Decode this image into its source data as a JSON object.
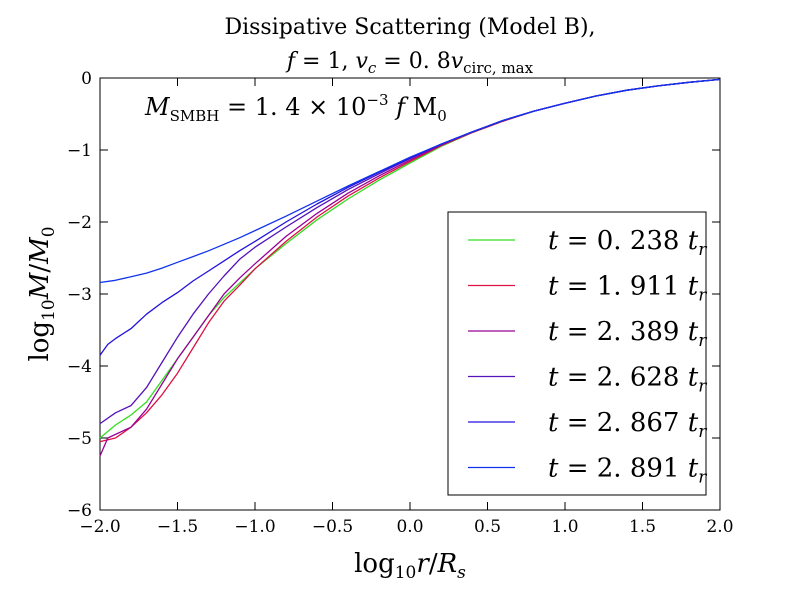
{
  "chart_data": {
    "type": "line",
    "title_line1": "Dissipative Scattering (Model B),",
    "title_line2": "f = 1, v_c = 0.8 v_circ,max",
    "annotation": "M_SMBH = 1.4×10^−3 f M_0",
    "xlabel": "log10 r/Rs",
    "ylabel": "log10 M/M0",
    "xlim": [
      -2.0,
      2.0
    ],
    "ylim": [
      -6,
      0
    ],
    "xticks": [
      -2.0,
      -1.5,
      -1.0,
      -0.5,
      0.0,
      0.5,
      1.0,
      1.5,
      2.0
    ],
    "xtick_labels": [
      "−2.0",
      "−1.5",
      "−1.0",
      "−0.5",
      "0.0",
      "0.5",
      "1.0",
      "1.5",
      "2.0"
    ],
    "yticks": [
      0,
      -1,
      -2,
      -3,
      -4,
      -5,
      -6
    ],
    "ytick_labels": [
      "0",
      "−1",
      "−2",
      "−3",
      "−4",
      "−5",
      "−6"
    ],
    "legend_position": "lower-right",
    "series": [
      {
        "name": "t = 0.238 t_r",
        "color": "#33dd22",
        "points": [
          [
            -2.0,
            -5.0
          ],
          [
            -1.9,
            -4.82
          ],
          [
            -1.8,
            -4.68
          ],
          [
            -1.7,
            -4.5
          ],
          [
            -1.6,
            -4.2
          ],
          [
            -1.5,
            -3.9
          ],
          [
            -1.4,
            -3.6
          ],
          [
            -1.3,
            -3.3
          ],
          [
            -1.2,
            -3.05
          ],
          [
            -1.1,
            -2.85
          ],
          [
            -1.0,
            -2.65
          ],
          [
            -0.8,
            -2.3
          ],
          [
            -0.6,
            -1.97
          ],
          [
            -0.4,
            -1.68
          ],
          [
            -0.2,
            -1.42
          ],
          [
            0.0,
            -1.18
          ],
          [
            0.2,
            -0.95
          ],
          [
            0.4,
            -0.76
          ],
          [
            0.6,
            -0.6
          ],
          [
            0.8,
            -0.46
          ],
          [
            1.0,
            -0.35
          ],
          [
            1.2,
            -0.25
          ],
          [
            1.4,
            -0.17
          ],
          [
            1.6,
            -0.11
          ],
          [
            1.8,
            -0.06
          ],
          [
            2.0,
            -0.02
          ]
        ]
      },
      {
        "name": "t = 1.911 t_r",
        "color": "#dd1144",
        "points": [
          [
            -2.0,
            -5.05
          ],
          [
            -1.9,
            -5.0
          ],
          [
            -1.8,
            -4.85
          ],
          [
            -1.7,
            -4.65
          ],
          [
            -1.6,
            -4.4
          ],
          [
            -1.5,
            -4.1
          ],
          [
            -1.4,
            -3.75
          ],
          [
            -1.3,
            -3.4
          ],
          [
            -1.2,
            -3.1
          ],
          [
            -1.1,
            -2.88
          ],
          [
            -1.0,
            -2.65
          ],
          [
            -0.8,
            -2.27
          ],
          [
            -0.6,
            -1.93
          ],
          [
            -0.4,
            -1.64
          ],
          [
            -0.2,
            -1.39
          ],
          [
            0.0,
            -1.16
          ],
          [
            0.2,
            -0.94
          ],
          [
            0.4,
            -0.76
          ],
          [
            0.6,
            -0.6
          ],
          [
            0.8,
            -0.46
          ],
          [
            1.0,
            -0.35
          ],
          [
            1.2,
            -0.25
          ],
          [
            1.4,
            -0.17
          ],
          [
            1.6,
            -0.11
          ],
          [
            1.8,
            -0.06
          ],
          [
            2.0,
            -0.02
          ]
        ]
      },
      {
        "name": "t = 2.389 t_r",
        "color": "#990099",
        "points": [
          [
            -2.0,
            -5.25
          ],
          [
            -1.95,
            -5.0
          ],
          [
            -1.9,
            -4.95
          ],
          [
            -1.8,
            -4.85
          ],
          [
            -1.7,
            -4.6
          ],
          [
            -1.6,
            -4.25
          ],
          [
            -1.5,
            -3.9
          ],
          [
            -1.4,
            -3.6
          ],
          [
            -1.3,
            -3.3
          ],
          [
            -1.2,
            -3.0
          ],
          [
            -1.1,
            -2.78
          ],
          [
            -1.0,
            -2.58
          ],
          [
            -0.8,
            -2.2
          ],
          [
            -0.6,
            -1.88
          ],
          [
            -0.4,
            -1.6
          ],
          [
            -0.2,
            -1.36
          ],
          [
            0.0,
            -1.14
          ],
          [
            0.2,
            -0.93
          ],
          [
            0.4,
            -0.75
          ],
          [
            0.6,
            -0.59
          ],
          [
            0.8,
            -0.46
          ],
          [
            1.0,
            -0.35
          ],
          [
            1.2,
            -0.25
          ],
          [
            1.4,
            -0.17
          ],
          [
            1.6,
            -0.11
          ],
          [
            1.8,
            -0.06
          ],
          [
            2.0,
            -0.02
          ]
        ]
      },
      {
        "name": "t = 2.628 t_r",
        "color": "#5511bb",
        "points": [
          [
            -2.0,
            -4.8
          ],
          [
            -1.9,
            -4.65
          ],
          [
            -1.8,
            -4.55
          ],
          [
            -1.7,
            -4.3
          ],
          [
            -1.6,
            -3.95
          ],
          [
            -1.5,
            -3.6
          ],
          [
            -1.4,
            -3.28
          ],
          [
            -1.3,
            -3.0
          ],
          [
            -1.2,
            -2.75
          ],
          [
            -1.1,
            -2.52
          ],
          [
            -1.0,
            -2.35
          ],
          [
            -0.8,
            -2.07
          ],
          [
            -0.6,
            -1.8
          ],
          [
            -0.4,
            -1.55
          ],
          [
            -0.2,
            -1.33
          ],
          [
            0.0,
            -1.12
          ],
          [
            0.2,
            -0.92
          ],
          [
            0.4,
            -0.75
          ],
          [
            0.6,
            -0.59
          ],
          [
            0.8,
            -0.46
          ],
          [
            1.0,
            -0.35
          ],
          [
            1.2,
            -0.25
          ],
          [
            1.4,
            -0.17
          ],
          [
            1.6,
            -0.11
          ],
          [
            1.8,
            -0.06
          ],
          [
            2.0,
            -0.02
          ]
        ]
      },
      {
        "name": "t = 2.867 t_r",
        "color": "#2211dd",
        "points": [
          [
            -2.0,
            -3.85
          ],
          [
            -1.95,
            -3.7
          ],
          [
            -1.9,
            -3.62
          ],
          [
            -1.8,
            -3.48
          ],
          [
            -1.7,
            -3.28
          ],
          [
            -1.6,
            -3.12
          ],
          [
            -1.5,
            -2.98
          ],
          [
            -1.4,
            -2.82
          ],
          [
            -1.3,
            -2.68
          ],
          [
            -1.2,
            -2.54
          ],
          [
            -1.1,
            -2.4
          ],
          [
            -1.0,
            -2.27
          ],
          [
            -0.8,
            -2.0
          ],
          [
            -0.6,
            -1.75
          ],
          [
            -0.4,
            -1.52
          ],
          [
            -0.2,
            -1.31
          ],
          [
            0.0,
            -1.11
          ],
          [
            0.2,
            -0.92
          ],
          [
            0.4,
            -0.75
          ],
          [
            0.6,
            -0.59
          ],
          [
            0.8,
            -0.46
          ],
          [
            1.0,
            -0.35
          ],
          [
            1.2,
            -0.25
          ],
          [
            1.4,
            -0.17
          ],
          [
            1.6,
            -0.11
          ],
          [
            1.8,
            -0.06
          ],
          [
            2.0,
            -0.02
          ]
        ]
      },
      {
        "name": "t = 2.891 t_r",
        "color": "#1133ee",
        "points": [
          [
            -2.0,
            -2.84
          ],
          [
            -1.9,
            -2.81
          ],
          [
            -1.8,
            -2.76
          ],
          [
            -1.7,
            -2.71
          ],
          [
            -1.6,
            -2.64
          ],
          [
            -1.5,
            -2.56
          ],
          [
            -1.4,
            -2.48
          ],
          [
            -1.3,
            -2.4
          ],
          [
            -1.2,
            -2.31
          ],
          [
            -1.1,
            -2.22
          ],
          [
            -1.0,
            -2.12
          ],
          [
            -0.8,
            -1.92
          ],
          [
            -0.6,
            -1.71
          ],
          [
            -0.4,
            -1.5
          ],
          [
            -0.2,
            -1.3
          ],
          [
            0.0,
            -1.1
          ],
          [
            0.2,
            -0.92
          ],
          [
            0.4,
            -0.75
          ],
          [
            0.6,
            -0.59
          ],
          [
            0.8,
            -0.46
          ],
          [
            1.0,
            -0.35
          ],
          [
            1.2,
            -0.25
          ],
          [
            1.4,
            -0.17
          ],
          [
            1.6,
            -0.11
          ],
          [
            1.8,
            -0.06
          ],
          [
            2.0,
            -0.02
          ]
        ]
      }
    ]
  }
}
